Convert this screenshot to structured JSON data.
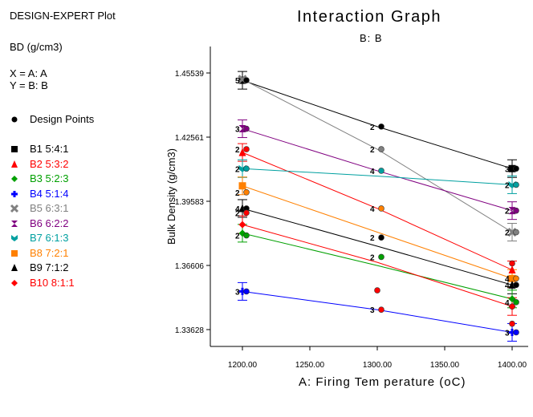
{
  "plot_header": "DESIGN-EXPERT Plot",
  "response": "BD (g/cm3)",
  "x_assign": "X = A: A",
  "y_assign": "Y = B: B",
  "design_points": "Design Points",
  "chart_data": {
    "type": "line",
    "title": "Interaction Graph",
    "subtitle": "B: B",
    "xlabel": "A: Firing Tem perature (oC)",
    "ylabel": "Bulk Density (g/cm3)",
    "xlim": [
      1175,
      1410
    ],
    "ylim": [
      1.3283,
      1.4594
    ],
    "x_ticks": [
      1200,
      1250,
      1300,
      1350,
      1400
    ],
    "x_tick_labels": [
      "1200.00",
      "1250.00",
      "1300.00",
      "1350.00",
      "1400.00"
    ],
    "y_ticks": [
      1.33628,
      1.36606,
      1.39583,
      1.42561,
      1.45539
    ],
    "y_tick_labels": [
      "1.33628",
      "1.36606",
      "1.39583",
      "1.42561",
      "1.45539"
    ],
    "grid": false,
    "x": [
      1200,
      1300,
      1400
    ],
    "series": [
      {
        "name": "B1 5:4:1",
        "color": "#000000",
        "marker": "square",
        "values": [
          1.452,
          1.4305,
          1.411
        ]
      },
      {
        "name": "B2 5:3:2",
        "color": "#ff0000",
        "marker": "triangle",
        "values": [
          1.4185,
          1.3925,
          1.364
        ]
      },
      {
        "name": "B3 5:2:3",
        "color": "#00a000",
        "marker": "diamond",
        "values": [
          1.381,
          1.366,
          1.3505
        ]
      },
      {
        "name": "B4 5:1:4",
        "color": "#0000ff",
        "marker": "plus",
        "values": [
          1.354,
          1.3455,
          1.335
        ]
      },
      {
        "name": "B5 6:3:1",
        "color": "#808080",
        "marker": "x",
        "values": [
          1.4525,
          1.42,
          1.3815
        ]
      },
      {
        "name": "B6 6:2:2",
        "color": "#800080",
        "marker": "bowtie",
        "values": [
          1.4295,
          1.41,
          1.3915
        ]
      },
      {
        "name": "B7 6:1:3",
        "color": "#00a0a0",
        "marker": "chevron",
        "values": [
          1.411,
          1.4075,
          1.4035
        ]
      },
      {
        "name": "B8 7:2:1",
        "color": "#ff8000",
        "marker": "square",
        "values": [
          1.403,
          1.3815,
          1.36
        ]
      },
      {
        "name": "B9 7:1:2",
        "color": "#000000",
        "marker": "triangle",
        "values": [
          1.3925,
          1.375,
          1.357
        ]
      },
      {
        "name": "B10 8:1:1",
        "color": "#ff0000",
        "marker": "diamond",
        "values": [
          1.385,
          1.3675,
          1.347
        ]
      }
    ],
    "design_points": [
      {
        "x": 1200,
        "y": 1.452,
        "color": "#000000",
        "label": "5"
      },
      {
        "x": 1200,
        "y": 1.4295,
        "color": "#800080",
        "label": "3"
      },
      {
        "x": 1200,
        "y": 1.42,
        "color": "#ff0000",
        "label": "2"
      },
      {
        "x": 1200,
        "y": 1.411,
        "color": "#00a0a0",
        "label": "2"
      },
      {
        "x": 1200,
        "y": 1.4,
        "color": "#ff8000",
        "label": "2"
      },
      {
        "x": 1200,
        "y": 1.3925,
        "color": "#000000",
        "label": "4"
      },
      {
        "x": 1200,
        "y": 1.3905,
        "color": "#ff0000",
        "label": "2"
      },
      {
        "x": 1200,
        "y": 1.38,
        "color": "#00a000",
        "label": "2"
      },
      {
        "x": 1200,
        "y": 1.354,
        "color": "#0000ff",
        "label": "3"
      },
      {
        "x": 1300,
        "y": 1.4305,
        "color": "#000000",
        "label": "2"
      },
      {
        "x": 1300,
        "y": 1.42,
        "color": "#808080",
        "label": "2"
      },
      {
        "x": 1300,
        "y": 1.41,
        "color": "#00a0a0",
        "label": "4"
      },
      {
        "x": 1300,
        "y": 1.3925,
        "color": "#ff8000",
        "label": "4"
      },
      {
        "x": 1300,
        "y": 1.379,
        "color": "#000000",
        "label": "2"
      },
      {
        "x": 1300,
        "y": 1.37,
        "color": "#00a000",
        "label": "2"
      },
      {
        "x": 1300,
        "y": 1.3545,
        "color": "#ff0000",
        "label": ""
      },
      {
        "x": 1300,
        "y": 1.3455,
        "color": "#ff0000",
        "label": "3"
      },
      {
        "x": 1400,
        "y": 1.411,
        "color": "#000000",
        "label": "3"
      },
      {
        "x": 1400,
        "y": 1.4035,
        "color": "#00a0a0",
        "label": "2"
      },
      {
        "x": 1400,
        "y": 1.3915,
        "color": "#800080",
        "label": "2"
      },
      {
        "x": 1400,
        "y": 1.3815,
        "color": "#808080",
        "label": "2"
      },
      {
        "x": 1400,
        "y": 1.367,
        "color": "#ff0000",
        "label": ""
      },
      {
        "x": 1400,
        "y": 1.36,
        "color": "#ff8000",
        "label": "4"
      },
      {
        "x": 1400,
        "y": 1.357,
        "color": "#000000",
        "label": "4"
      },
      {
        "x": 1400,
        "y": 1.349,
        "color": "#00a000",
        "label": "4"
      },
      {
        "x": 1400,
        "y": 1.347,
        "color": "#ff0000",
        "label": ""
      },
      {
        "x": 1400,
        "y": 1.339,
        "color": "#ff0000",
        "label": ""
      },
      {
        "x": 1400,
        "y": 1.335,
        "color": "#0000ff",
        "label": "3"
      }
    ],
    "error_bars": [
      {
        "x": 1200,
        "y": 1.452,
        "color": "#000000"
      },
      {
        "x": 1200,
        "y": 1.4295,
        "color": "#800080"
      },
      {
        "x": 1200,
        "y": 1.4185,
        "color": "#ff0000"
      },
      {
        "x": 1200,
        "y": 1.411,
        "color": "#00a0a0"
      },
      {
        "x": 1200,
        "y": 1.403,
        "color": "#ff8000"
      },
      {
        "x": 1200,
        "y": 1.3925,
        "color": "#000000"
      },
      {
        "x": 1200,
        "y": 1.385,
        "color": "#ff0000"
      },
      {
        "x": 1200,
        "y": 1.381,
        "color": "#00a000"
      },
      {
        "x": 1200,
        "y": 1.354,
        "color": "#0000ff"
      },
      {
        "x": 1400,
        "y": 1.411,
        "color": "#000000"
      },
      {
        "x": 1400,
        "y": 1.4035,
        "color": "#00a0a0"
      },
      {
        "x": 1400,
        "y": 1.3915,
        "color": "#800080"
      },
      {
        "x": 1400,
        "y": 1.3815,
        "color": "#808080"
      },
      {
        "x": 1400,
        "y": 1.364,
        "color": "#ff0000"
      },
      {
        "x": 1400,
        "y": 1.36,
        "color": "#ff8000"
      },
      {
        "x": 1400,
        "y": 1.357,
        "color": "#000000"
      },
      {
        "x": 1400,
        "y": 1.3505,
        "color": "#00a000"
      },
      {
        "x": 1400,
        "y": 1.347,
        "color": "#ff0000"
      },
      {
        "x": 1400,
        "y": 1.335,
        "color": "#0000ff"
      }
    ]
  }
}
